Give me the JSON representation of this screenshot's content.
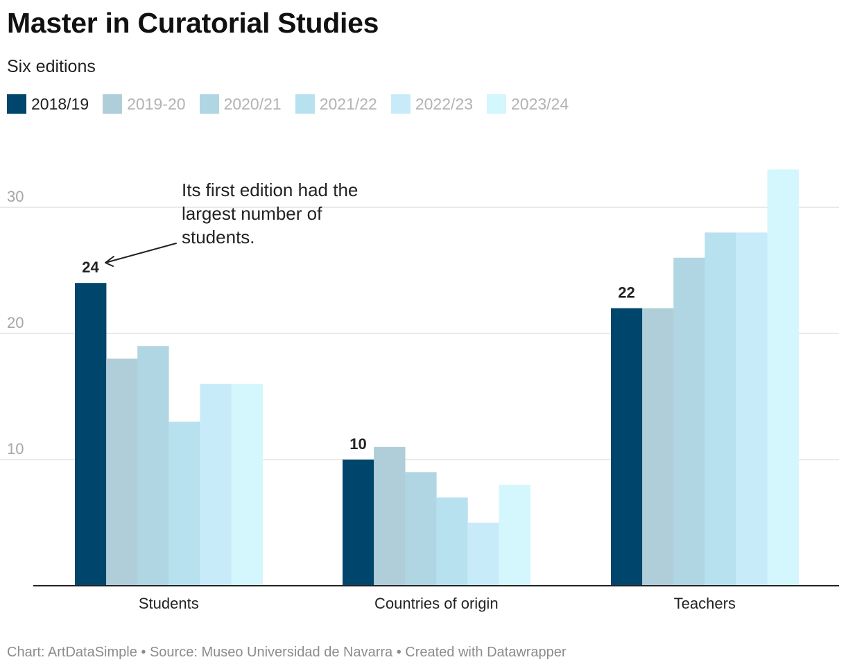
{
  "chart_data": {
    "type": "bar",
    "title": "Master in Curatorial Studies",
    "subtitle": "Six editions",
    "categories": [
      "Students",
      "Countries of origin",
      "Teachers"
    ],
    "series": [
      {
        "name": "2018/19",
        "color": "#00456b",
        "values": [
          24,
          10,
          22
        ]
      },
      {
        "name": "2019-20",
        "color": "#b0ced9",
        "values": [
          18,
          11,
          22
        ]
      },
      {
        "name": "2020/21",
        "color": "#b0d6e3",
        "values": [
          19,
          9,
          26
        ]
      },
      {
        "name": "2021/22",
        "color": "#b7e1ef",
        "values": [
          13,
          7,
          28
        ]
      },
      {
        "name": "2022/23",
        "color": "#c8ebfa",
        "values": [
          16,
          5,
          28
        ]
      },
      {
        "name": "2023/24",
        "color": "#d4f6fd",
        "values": [
          16,
          8,
          33
        ]
      }
    ],
    "yticks": [
      10,
      20,
      30
    ],
    "ylim": [
      0,
      33
    ],
    "grid": true,
    "legend_position": "top-left",
    "value_labels": [
      {
        "series": 0,
        "category": 0,
        "text": "24"
      },
      {
        "series": 0,
        "category": 1,
        "text": "10"
      },
      {
        "series": 0,
        "category": 2,
        "text": "22"
      }
    ],
    "annotation": {
      "lines": [
        "Its first edition had the",
        "largest number of",
        "students."
      ]
    },
    "footer": "Chart: ArtDataSimple • Source: Museo Universidad de Navarra • Created with Datawrapper"
  }
}
